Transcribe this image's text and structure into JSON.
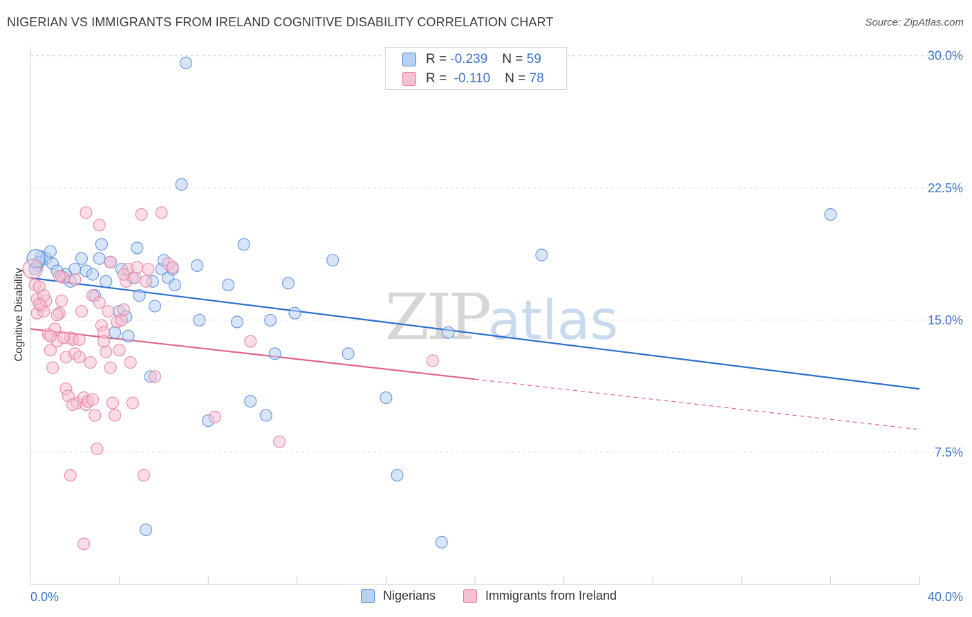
{
  "title": "NIGERIAN VS IMMIGRANTS FROM IRELAND COGNITIVE DISABILITY CORRELATION CHART",
  "source": "Source: ZipAtlas.com",
  "colors": {
    "blue": "#4a86d8",
    "blue_fill": "#b8d0f2",
    "blue_line": "#2a6fcd",
    "pink": "#e8789c",
    "pink_fill": "#f6c1d2",
    "pink_line": "#e0628e",
    "axis_label": "#3a72c9",
    "grid": "#dddddd"
  },
  "stats": {
    "r_label": "R =",
    "n_label": "N =",
    "blue": {
      "r": "-0.239",
      "n": "59"
    },
    "pink": {
      "r": "-0.110",
      "n": "78"
    }
  },
  "legend": {
    "blue": "Nigerians",
    "pink": "Immigrants from Ireland"
  },
  "chart_data": {
    "type": "scatter",
    "title": "NIGERIAN VS IMMIGRANTS FROM IRELAND COGNITIVE DISABILITY CORRELATION CHART",
    "xlabel": "",
    "ylabel": "Cognitive Disability",
    "xlim": [
      0,
      40
    ],
    "ylim": [
      0,
      30.5
    ],
    "x_tick_labels": [
      "0.0%",
      "40.0%"
    ],
    "y_ticks": [
      7.5,
      15.0,
      22.5,
      30.0
    ],
    "y_tick_labels": [
      "7.5%",
      "15.0%",
      "22.5%",
      "30.0%"
    ],
    "grid": "horizontal dashed",
    "legend_position": "bottom",
    "watermark": "ZIPatlas",
    "series": [
      {
        "name": "Nigerians",
        "color": "#4a86d8",
        "trend": {
          "x": [
            0,
            40
          ],
          "y": [
            17.4,
            11.1
          ],
          "dashed_from": null
        },
        "points": [
          [
            0.3,
            18.1
          ],
          [
            0.5,
            18.6
          ],
          [
            0.7,
            18.5
          ],
          [
            0.9,
            18.9
          ],
          [
            1.0,
            18.2
          ],
          [
            1.2,
            17.8
          ],
          [
            1.4,
            17.5
          ],
          [
            1.6,
            17.6
          ],
          [
            1.8,
            17.2
          ],
          [
            2.0,
            17.9
          ],
          [
            2.3,
            18.5
          ],
          [
            2.5,
            17.8
          ],
          [
            2.8,
            17.6
          ],
          [
            2.9,
            16.4
          ],
          [
            3.1,
            18.5
          ],
          [
            3.2,
            19.3
          ],
          [
            3.4,
            17.2
          ],
          [
            3.6,
            18.3
          ],
          [
            3.8,
            14.3
          ],
          [
            4.0,
            15.5
          ],
          [
            4.1,
            17.9
          ],
          [
            4.3,
            15.2
          ],
          [
            4.4,
            14.1
          ],
          [
            4.6,
            17.4
          ],
          [
            4.8,
            19.1
          ],
          [
            4.9,
            16.4
          ],
          [
            5.2,
            3.1
          ],
          [
            5.4,
            11.8
          ],
          [
            5.5,
            17.2
          ],
          [
            5.6,
            15.8
          ],
          [
            5.9,
            17.9
          ],
          [
            6.0,
            18.4
          ],
          [
            6.2,
            17.4
          ],
          [
            6.4,
            17.9
          ],
          [
            6.5,
            17.0
          ],
          [
            6.8,
            22.7
          ],
          [
            7.0,
            29.6
          ],
          [
            7.5,
            18.1
          ],
          [
            7.6,
            15.0
          ],
          [
            8.0,
            9.3
          ],
          [
            8.9,
            17.0
          ],
          [
            9.3,
            14.9
          ],
          [
            9.6,
            19.3
          ],
          [
            9.9,
            10.4
          ],
          [
            10.6,
            9.6
          ],
          [
            10.8,
            15.0
          ],
          [
            11.0,
            13.1
          ],
          [
            11.6,
            17.1
          ],
          [
            11.9,
            15.4
          ],
          [
            13.6,
            18.4
          ],
          [
            14.3,
            13.1
          ],
          [
            16.0,
            10.6
          ],
          [
            16.5,
            6.2
          ],
          [
            18.5,
            2.4
          ],
          [
            18.8,
            14.3
          ],
          [
            23.0,
            18.7
          ],
          [
            36.0,
            21.0
          ],
          [
            0.2,
            17.9
          ],
          [
            0.4,
            18.3
          ]
        ]
      },
      {
        "name": "Immigrants from Ireland",
        "color": "#e8789c",
        "trend": {
          "x": [
            0,
            40
          ],
          "y": [
            14.5,
            8.8
          ],
          "dashed_from": 20
        },
        "points": [
          [
            0.2,
            17.0
          ],
          [
            0.3,
            16.2
          ],
          [
            0.3,
            15.4
          ],
          [
            0.4,
            16.9
          ],
          [
            0.5,
            15.8
          ],
          [
            0.6,
            15.5
          ],
          [
            0.7,
            16.1
          ],
          [
            0.8,
            14.2
          ],
          [
            0.9,
            13.3
          ],
          [
            1.0,
            12.3
          ],
          [
            1.1,
            14.5
          ],
          [
            1.2,
            13.8
          ],
          [
            1.3,
            15.4
          ],
          [
            1.4,
            16.1
          ],
          [
            1.5,
            17.4
          ],
          [
            1.6,
            11.1
          ],
          [
            1.6,
            12.9
          ],
          [
            1.7,
            10.7
          ],
          [
            1.8,
            14.0
          ],
          [
            1.9,
            13.9
          ],
          [
            2.0,
            13.1
          ],
          [
            2.1,
            10.3
          ],
          [
            2.2,
            12.9
          ],
          [
            2.3,
            15.5
          ],
          [
            2.4,
            10.6
          ],
          [
            2.5,
            10.2
          ],
          [
            2.6,
            10.4
          ],
          [
            2.7,
            12.6
          ],
          [
            2.8,
            16.4
          ],
          [
            2.9,
            9.6
          ],
          [
            3.0,
            7.7
          ],
          [
            3.1,
            16.0
          ],
          [
            3.2,
            14.7
          ],
          [
            3.3,
            14.3
          ],
          [
            3.4,
            13.2
          ],
          [
            3.5,
            15.5
          ],
          [
            3.6,
            12.3
          ],
          [
            3.7,
            10.3
          ],
          [
            3.8,
            9.6
          ],
          [
            3.9,
            14.9
          ],
          [
            4.0,
            13.3
          ],
          [
            4.1,
            15.0
          ],
          [
            4.2,
            15.6
          ],
          [
            4.3,
            17.2
          ],
          [
            4.4,
            17.9
          ],
          [
            4.5,
            12.6
          ],
          [
            4.6,
            10.3
          ],
          [
            4.7,
            17.4
          ],
          [
            4.8,
            18.0
          ],
          [
            5.0,
            21.0
          ],
          [
            5.1,
            6.2
          ],
          [
            5.2,
            17.2
          ],
          [
            5.3,
            17.9
          ],
          [
            5.6,
            11.8
          ],
          [
            5.9,
            21.1
          ],
          [
            6.2,
            18.2
          ],
          [
            6.4,
            18.0
          ],
          [
            8.3,
            9.5
          ],
          [
            9.9,
            13.8
          ],
          [
            11.2,
            8.1
          ],
          [
            18.1,
            12.7
          ],
          [
            2.4,
            2.3
          ],
          [
            1.8,
            6.2
          ],
          [
            3.1,
            20.4
          ],
          [
            2.5,
            21.1
          ],
          [
            1.2,
            15.3
          ],
          [
            0.9,
            14.1
          ],
          [
            1.5,
            14.0
          ],
          [
            2.2,
            13.9
          ],
          [
            3.6,
            18.3
          ],
          [
            4.2,
            17.6
          ],
          [
            0.6,
            16.4
          ],
          [
            1.9,
            10.2
          ],
          [
            2.8,
            10.5
          ],
          [
            3.3,
            13.8
          ],
          [
            0.4,
            15.9
          ],
          [
            1.3,
            17.5
          ],
          [
            2.0,
            17.3
          ]
        ]
      }
    ]
  }
}
